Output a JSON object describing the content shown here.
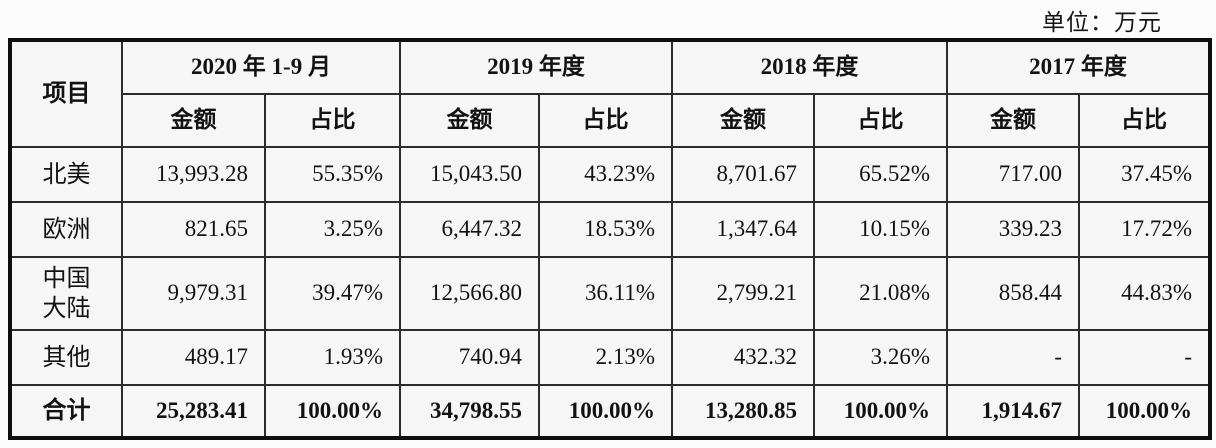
{
  "unit_label": "单位：万元",
  "colors": {
    "border_outer": "#0e0e0e",
    "border_inner": "#2c2c2c",
    "cell_background": "#f6f6f6",
    "text": "#121212"
  },
  "table": {
    "item_header": "项目",
    "periods": [
      {
        "label": "2020 年 1-9 月",
        "amount_header": "金额",
        "ratio_header": "占比"
      },
      {
        "label": "2019 年度",
        "amount_header": "金额",
        "ratio_header": "占比"
      },
      {
        "label": "2018 年度",
        "amount_header": "金额",
        "ratio_header": "占比"
      },
      {
        "label": "2017 年度",
        "amount_header": "金额",
        "ratio_header": "占比"
      }
    ],
    "rows": [
      {
        "label": "北美",
        "values": [
          "13,993.28",
          "55.35%",
          "15,043.50",
          "43.23%",
          "8,701.67",
          "65.52%",
          "717.00",
          "37.45%"
        ]
      },
      {
        "label": "欧洲",
        "values": [
          "821.65",
          "3.25%",
          "6,447.32",
          "18.53%",
          "1,347.64",
          "10.15%",
          "339.23",
          "17.72%"
        ]
      },
      {
        "label": "中国大陆",
        "values": [
          "9,979.31",
          "39.47%",
          "12,566.80",
          "36.11%",
          "2,799.21",
          "21.08%",
          "858.44",
          "44.83%"
        ]
      },
      {
        "label": "其他",
        "values": [
          "489.17",
          "1.93%",
          "740.94",
          "2.13%",
          "432.32",
          "3.26%",
          "-",
          "-"
        ]
      }
    ],
    "total_row": {
      "label": "合计",
      "values": [
        "25,283.41",
        "100.00%",
        "34,798.55",
        "100.00%",
        "13,280.85",
        "100.00%",
        "1,914.67",
        "100.00%"
      ]
    }
  }
}
